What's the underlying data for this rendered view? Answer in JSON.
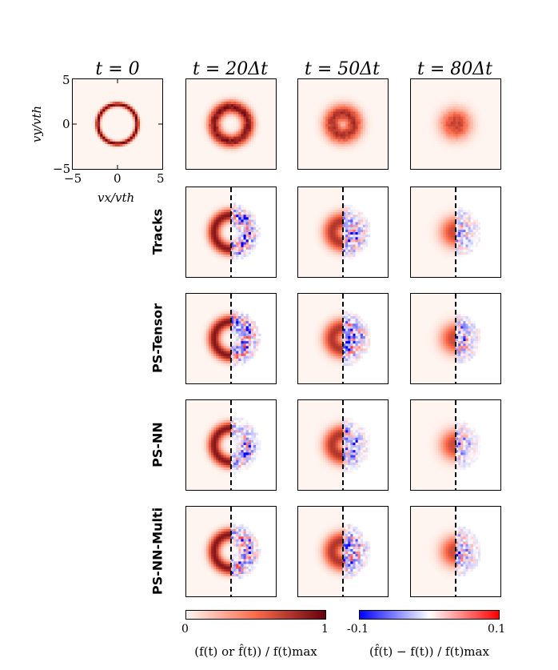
{
  "chart_data": {
    "type": "heatmap",
    "columns": [
      "t = 0",
      "t = 20Δt",
      "t = 50Δt",
      "t = 80Δt"
    ],
    "rows": [
      "Tracks",
      "PS-Tensor",
      "PS-NN",
      "PS-NN-Multi"
    ],
    "axes": {
      "xlabel": "vx/vth",
      "ylabel": "vy/vth",
      "xlim": [
        -5,
        5
      ],
      "ylim": [
        -5,
        5
      ],
      "xticks": [
        "−5",
        "0",
        "5"
      ],
      "yticks": [
        "5",
        "0",
        "−5"
      ]
    },
    "ring_profiles": [
      {
        "time": "t = 0",
        "ring_radius": 2.2,
        "ring_width": 0.25,
        "peak": 1.0
      },
      {
        "time": "t = 20Δt",
        "ring_radius": 1.9,
        "ring_width": 0.7,
        "peak": 0.9
      },
      {
        "time": "t = 50Δt",
        "ring_radius": 1.2,
        "ring_width": 1.0,
        "peak": 0.75
      },
      {
        "time": "t = 80Δt",
        "ring_radius": 0.4,
        "ring_width": 1.3,
        "peak": 0.65
      }
    ],
    "colorbars": [
      {
        "name": "distribution",
        "min_label": "0",
        "max_label": "1",
        "label": "(f(t) or f̂(t)) / f(t)max",
        "colors": [
          "#fff5f0",
          "#fb6a4a",
          "#67000d"
        ]
      },
      {
        "name": "error",
        "min_label": "-0.1",
        "max_label": "0.1",
        "label": "(f̂(t) − f(t)) / f(t)max",
        "colors": [
          "#0000ff",
          "#ffffff",
          "#ff0000"
        ]
      }
    ]
  }
}
